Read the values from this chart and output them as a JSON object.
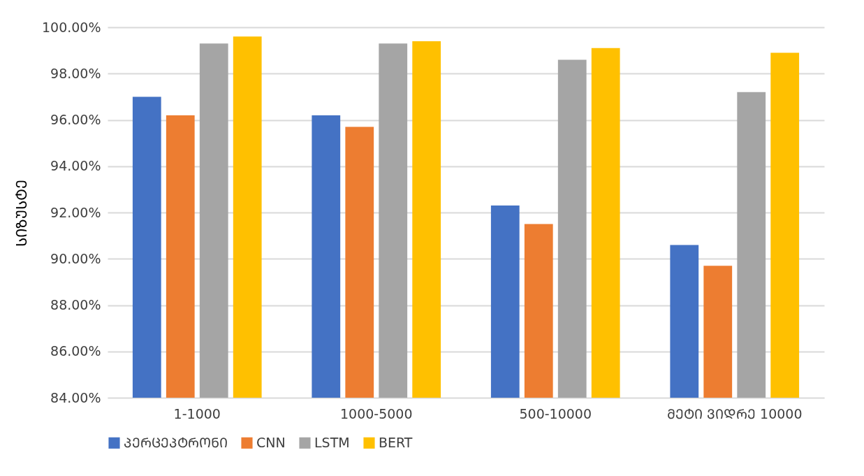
{
  "chart_data": {
    "type": "bar",
    "ylabel": "ᲡᲘᲖᲣᲡᲢᲔ",
    "categories": [
      "1-1000",
      "1000-5000",
      "500-10000",
      "ᲛᲔᲢᲘ ᲕᲘᲓᲠᲔ 10000"
    ],
    "series": [
      {
        "name": "ᲞᲔᲠᲪᲔᲞᲢᲠᲝᲜᲘ",
        "color": "#4472c4",
        "values": [
          97.0,
          96.2,
          92.3,
          90.6
        ]
      },
      {
        "name": "CNN",
        "color": "#ed7d31",
        "values": [
          96.2,
          95.7,
          91.5,
          89.7
        ]
      },
      {
        "name": "LSTM",
        "color": "#a5a5a5",
        "values": [
          99.3,
          99.3,
          98.6,
          97.2
        ]
      },
      {
        "name": "BERT",
        "color": "#ffc000",
        "values": [
          99.6,
          99.4,
          99.1,
          98.9
        ]
      }
    ],
    "ylim": [
      84,
      100
    ],
    "yticks": [
      {
        "value": 84,
        "label": "84.00%"
      },
      {
        "value": 86,
        "label": "86.00%"
      },
      {
        "value": 88,
        "label": "88.00%"
      },
      {
        "value": 90,
        "label": "90.00%"
      },
      {
        "value": 92,
        "label": "92.00%"
      },
      {
        "value": 94,
        "label": "94.00%"
      },
      {
        "value": 96,
        "label": "96.00%"
      },
      {
        "value": 98,
        "label": "98.00%"
      },
      {
        "value": 100,
        "label": "100.00%"
      }
    ],
    "grid": "y",
    "legend": "bottom"
  }
}
